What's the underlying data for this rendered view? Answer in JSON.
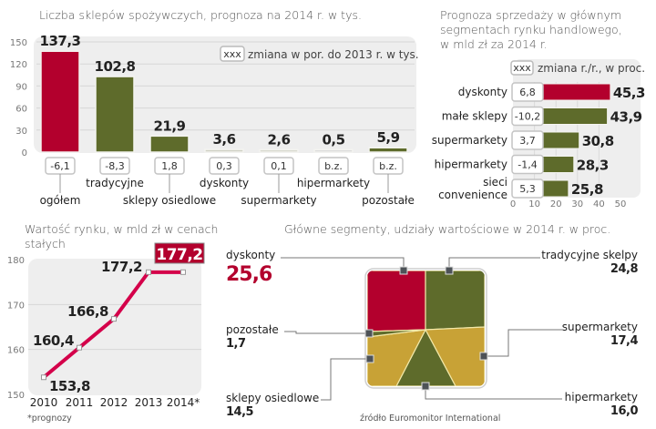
{
  "colors": {
    "red": "#b3002d",
    "olive": "#5e6b2b",
    "mustard": "#c8a236",
    "panel": "#eeeeee",
    "grid": "#d6d6d6",
    "marker": "#4d5257"
  },
  "chart_data": [
    {
      "id": "stores",
      "type": "bar",
      "title": "Liczba sklepów spożywczych, prognoza na 2014 r. w tys.",
      "legend": {
        "box": "xxx",
        "text": "zmiana w por. do 2013 r. w tys.",
        "placement": "top-right"
      },
      "categories": [
        "ogółem",
        "tradycyjne",
        "sklepy osiedlowe",
        "dyskonty",
        "supermarkety",
        "hipermarkety",
        "pozostałe"
      ],
      "values": [
        137.3,
        102.8,
        21.9,
        3.6,
        2.6,
        0.5,
        5.9
      ],
      "value_labels": [
        "137,3",
        "102,8",
        "21,9",
        "3,6",
        "2,6",
        "0,5",
        "5,9"
      ],
      "changes": [
        "-6,1",
        "-8,3",
        "1,8",
        "0,3",
        "0,1",
        "b.z.",
        "b.z."
      ],
      "yticks": [
        0,
        30,
        60,
        90,
        120,
        150
      ],
      "ylim": [
        0,
        150
      ],
      "grid": true
    },
    {
      "id": "sales",
      "type": "bar",
      "orientation": "horizontal",
      "title_lines": [
        "Prognoza sprzedaży w głównym",
        "segmentach rynku handlowego,",
        "w mld zł za 2014 r."
      ],
      "legend": {
        "box": "xxx",
        "text": "zmiana r./r., w proc.",
        "placement": "top-right"
      },
      "categories": [
        [
          "dyskonty"
        ],
        [
          "małe sklepy"
        ],
        [
          "supermarkety"
        ],
        [
          "hipermarkety"
        ],
        [
          "sieci",
          "convenience"
        ]
      ],
      "values": [
        45.3,
        43.9,
        30.8,
        28.3,
        25.8
      ],
      "value_labels": [
        "45,3",
        "43,9",
        "30,8",
        "28,3",
        "25,8"
      ],
      "changes": [
        "6,8",
        "-10,2",
        "3,7",
        "-1,4",
        "5,3"
      ],
      "xticks": [
        0,
        10,
        20,
        30,
        40,
        50
      ],
      "xlim": [
        0,
        50
      ],
      "grid": true
    },
    {
      "id": "market",
      "type": "line",
      "title_lines": [
        "Wartość rynku, w mld zł w cenach",
        "stałych"
      ],
      "x": [
        "2010",
        "2011",
        "2012",
        "2013",
        "2014*"
      ],
      "values": [
        153.8,
        160.4,
        166.8,
        177.2,
        177.2
      ],
      "value_labels": [
        "153,8",
        "160,4",
        "166,8",
        "177,2"
      ],
      "highlight_label": "177,2",
      "yticks": [
        150,
        160,
        170,
        180
      ],
      "ylim": [
        150,
        180
      ],
      "note": "*prognozy",
      "grid": true
    },
    {
      "id": "shares",
      "type": "pie",
      "title": "Główne segmenty, udziały wartościowe w 2014 r. w proc.",
      "slices": [
        {
          "label": "dyskonty",
          "value": 25.6,
          "value_label": "25,6"
        },
        {
          "label": "tradycyjne skelpy",
          "value": 24.8,
          "value_label": "24,8"
        },
        {
          "label": "supermarkety",
          "value": 17.4,
          "value_label": "17,4"
        },
        {
          "label": "hipermarkety",
          "value": 16.0,
          "value_label": "16,0"
        },
        {
          "label": "sklepy osiedlowe",
          "value": 14.5,
          "value_label": "14,5"
        },
        {
          "label": "pozostałe",
          "value": 1.7,
          "value_label": "1,7"
        }
      ],
      "source": "źródło Euromonitor International"
    }
  ]
}
